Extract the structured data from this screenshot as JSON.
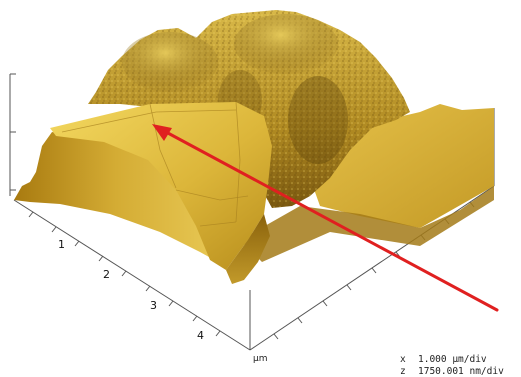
{
  "figure": {
    "axis_ticks": [
      "1",
      "2",
      "3",
      "4"
    ],
    "unit": "µm",
    "scale": {
      "x_marker": "x",
      "x_value": "1.000 µm/div",
      "z_marker": "z",
      "z_value": "1750.001 nm/div"
    }
  },
  "colors": {
    "surface_highlight": "#f0d45a",
    "surface_mid": "#c8a020",
    "surface_shadow": "#6a4a08",
    "arrow": "#e02020",
    "axis": "#555555"
  }
}
